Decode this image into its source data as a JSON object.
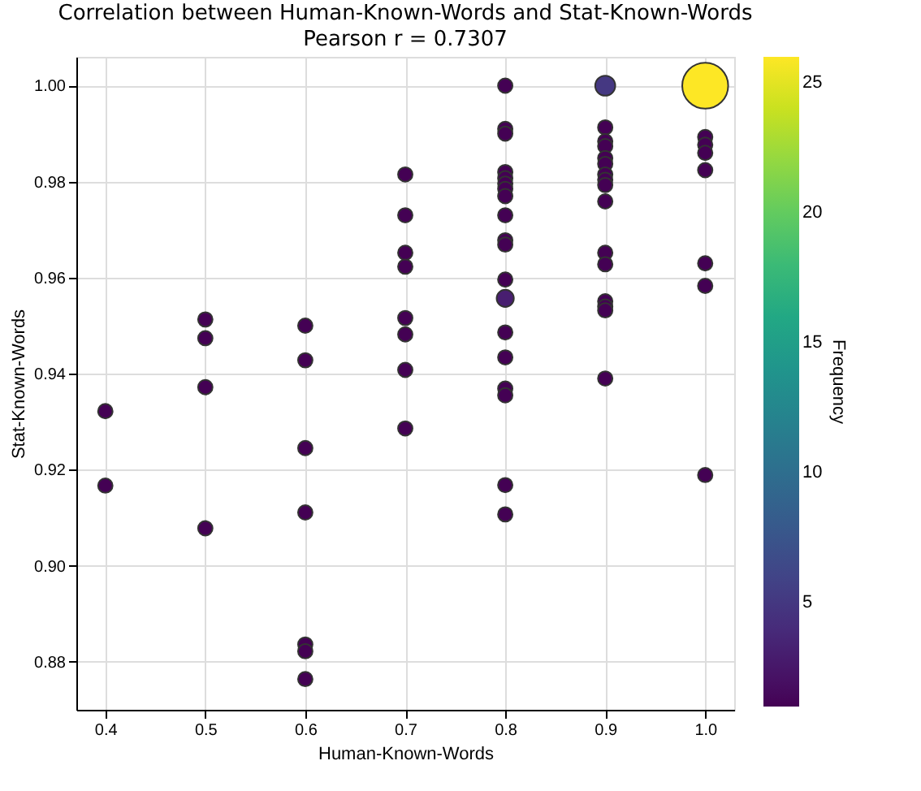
{
  "chart_data": {
    "type": "bubble",
    "title": "Correlation between Human-Known-Words and Stat-Known-Words",
    "subtitle": "Pearson r = 0.7307",
    "xlabel": "Human-Known-Words",
    "ylabel": "Stat-Known-Words",
    "clabel": "Frequency",
    "x": [
      0.4,
      0.4,
      0.5,
      0.5,
      0.5,
      0.5,
      0.6,
      0.6,
      0.6,
      0.6,
      0.6,
      0.6,
      0.6,
      0.7,
      0.7,
      0.7,
      0.7,
      0.7,
      0.7,
      0.7,
      0.7,
      0.8,
      0.8,
      0.8,
      0.8,
      0.8,
      0.8,
      0.8,
      0.8,
      0.8,
      0.8,
      0.8,
      0.8,
      0.8,
      0.8,
      0.8,
      0.8,
      0.8,
      0.8,
      0.8,
      0.9,
      0.9,
      0.9,
      0.9,
      0.9,
      0.9,
      0.9,
      0.9,
      0.9,
      0.9,
      0.9,
      0.9,
      0.9,
      0.9,
      0.9,
      0.9,
      1.0,
      1.0,
      1.0,
      1.0,
      1.0,
      1.0,
      1.0,
      1.0
    ],
    "values": [
      0.9322,
      0.9167,
      0.9513,
      0.9474,
      0.9372,
      0.9078,
      0.95,
      0.9428,
      0.9245,
      0.9111,
      0.8836,
      0.8822,
      0.8764,
      0.9815,
      0.973,
      0.9652,
      0.9623,
      0.9516,
      0.9482,
      0.9408,
      0.9286,
      1.0,
      0.991,
      0.99,
      0.982,
      0.9807,
      0.9796,
      0.9785,
      0.977,
      0.973,
      0.9678,
      0.9669,
      0.9596,
      0.9557,
      0.9486,
      0.9434,
      0.9369,
      0.9355,
      0.9168,
      0.9107,
      1.0,
      0.9913,
      0.9884,
      0.9874,
      0.9849,
      0.9837,
      0.9815,
      0.9804,
      0.9793,
      0.9759,
      0.9652,
      0.9628,
      0.9551,
      0.954,
      0.9532,
      0.939,
      1.0,
      0.9893,
      0.9877,
      0.986,
      0.9824,
      0.963,
      0.9583,
      0.9189
    ],
    "sizes": [
      0.1,
      0.1,
      0.1,
      0.1,
      0.1,
      0.1,
      0.1,
      0.1,
      0.1,
      0.1,
      0.1,
      0.1,
      0.1,
      0.1,
      0.1,
      0.1,
      0.1,
      0.1,
      0.1,
      0.1,
      0.1,
      0.1,
      0.1,
      0.1,
      0.1,
      0.1,
      0.1,
      0.1,
      0.1,
      0.1,
      0.1,
      0.1,
      0.1,
      0.14,
      0.1,
      0.1,
      0.1,
      0.1,
      0.1,
      0.1,
      0.19,
      0.1,
      0.1,
      0.1,
      0.1,
      0.1,
      0.1,
      0.1,
      0.1,
      0.1,
      0.1,
      0.1,
      0.1,
      0.1,
      0.1,
      0.1,
      1,
      0.1,
      0.1,
      0.1,
      0.1,
      0.1,
      0.1,
      0.1
    ],
    "cvalues": [
      1,
      1,
      1,
      1,
      1,
      1,
      1,
      1,
      1,
      1,
      1,
      1,
      1,
      1,
      1,
      1,
      1,
      1,
      1,
      1,
      1,
      1,
      1,
      1,
      1,
      1,
      1,
      1,
      1,
      1,
      1,
      1,
      1,
      3,
      1,
      1,
      1,
      1,
      1,
      1,
      5,
      1,
      1,
      1,
      1,
      1,
      1,
      1,
      1,
      1,
      1,
      1,
      1,
      1,
      1,
      1,
      26,
      1,
      1,
      1,
      1,
      1,
      1,
      1
    ],
    "xlim": [
      0.371,
      1.029
    ],
    "ylim": [
      0.87,
      1.006
    ],
    "xticks": [
      0.4,
      0.5,
      0.6,
      0.7,
      0.8,
      0.9,
      {
        "value": 1,
        "label": "1.0"
      }
    ],
    "yticks": [
      0.88,
      {
        "value": 0.9,
        "label": "0.90"
      },
      0.92,
      0.94,
      0.96,
      0.98,
      {
        "value": 1,
        "label": "1.00"
      }
    ],
    "clim": [
      1,
      26
    ],
    "cticks": [
      5,
      10,
      15,
      20,
      25
    ],
    "grid": true,
    "marker": "circle"
  }
}
